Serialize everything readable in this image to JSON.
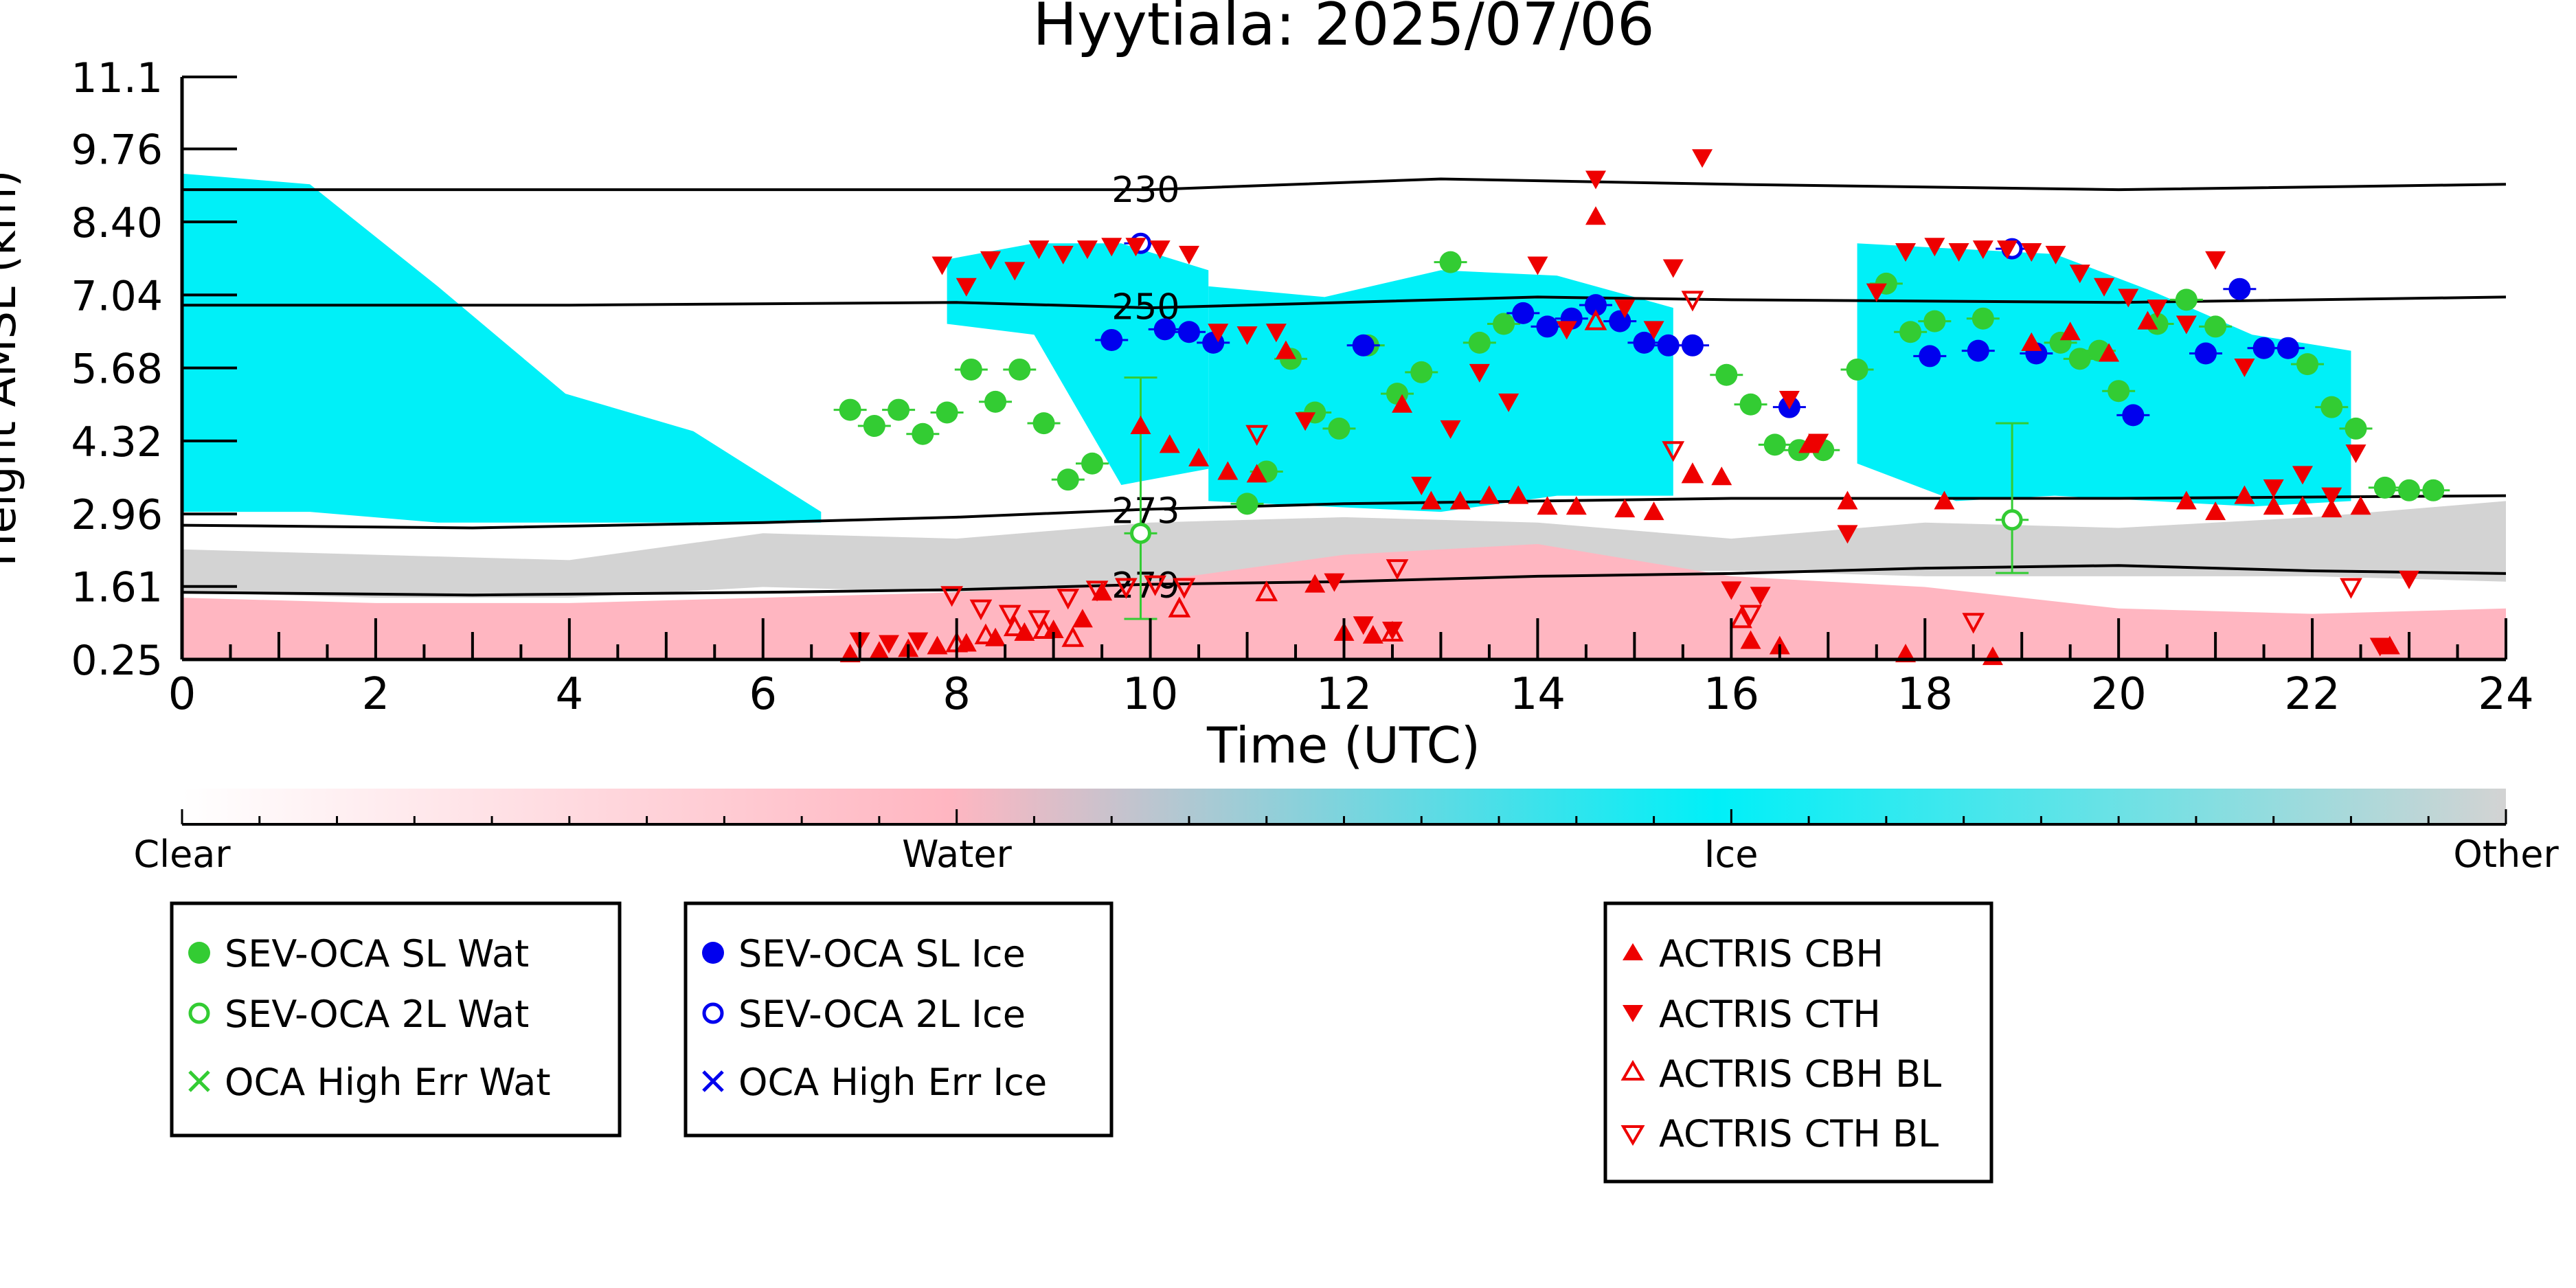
{
  "chart_data": {
    "type": "scatter",
    "title": "Hyytiala: 2025/07/06",
    "xlabel": "Time (UTC)",
    "ylabel": "Height AMSL (km)",
    "xlim": [
      0,
      24
    ],
    "ylim": [
      0.25,
      11.1
    ],
    "xticks": [
      "0",
      "2",
      "4",
      "6",
      "8",
      "10",
      "12",
      "14",
      "16",
      "18",
      "20",
      "22",
      "24"
    ],
    "yticks": [
      "0.25",
      "1.61",
      "2.96",
      "4.32",
      "5.68",
      "7.04",
      "8.40",
      "9.76",
      "11.1"
    ],
    "ytick_values": [
      0.25,
      1.61,
      2.96,
      4.32,
      5.68,
      7.04,
      8.4,
      9.76,
      11.1
    ],
    "colorbar": {
      "labels": [
        "Clear",
        "Water",
        "Ice",
        "Other"
      ],
      "colors": [
        "#ffffff",
        "#ffb6c1",
        "#00f0f8",
        "#d3d3d3"
      ]
    },
    "background_fields": [
      {
        "class": "Ice",
        "color": "#00f0f8",
        "regions": [
          {
            "x": [
              0,
              6.6
            ],
            "top": [
              9.3,
              9.1,
              7.2,
              5.2,
              4.5,
              3.0
            ],
            "bottom": [
              3.0,
              3.0,
              2.8,
              2.8,
              2.8,
              2.8
            ]
          },
          {
            "x": [
              7.9,
              10.6
            ],
            "top": [
              7.7,
              8.0,
              8.0,
              7.5
            ],
            "bottom": [
              6.5,
              6.3,
              3.5,
              3.8
            ]
          },
          {
            "x": [
              10.6,
              15.4
            ],
            "top": [
              7.2,
              7.0,
              7.5,
              7.4,
              6.8
            ],
            "bottom": [
              3.2,
              3.1,
              3.0,
              3.3,
              3.3
            ]
          },
          {
            "x": [
              17.3,
              22.4
            ],
            "top": [
              8.0,
              7.9,
              7.8,
              7.1,
              6.3,
              6.0
            ],
            "bottom": [
              3.9,
              3.2,
              3.3,
              3.2,
              3.1,
              3.2
            ]
          }
        ]
      },
      {
        "class": "Other",
        "color": "#d3d3d3",
        "regions": [
          {
            "x": [
              0,
              24
            ],
            "top": [
              2.3,
              2.2,
              2.1,
              2.6,
              2.5,
              2.8,
              2.9,
              2.8,
              2.5,
              2.8,
              2.7,
              2.9,
              3.2
            ],
            "bottom": [
              1.5,
              1.4,
              1.4,
              1.6,
              1.5,
              1.6,
              1.8,
              1.9,
              1.9,
              1.8,
              1.8,
              1.8,
              1.7
            ]
          }
        ]
      },
      {
        "class": "Water",
        "color": "#ffb6c1",
        "regions": [
          {
            "x": [
              0,
              24
            ],
            "top": [
              1.4,
              1.3,
              1.3,
              1.4,
              1.5,
              1.7,
              2.2,
              2.4,
              1.8,
              1.6,
              1.2,
              1.1,
              1.2
            ],
            "bottom": [
              0.25,
              0.25,
              0.25,
              0.25,
              0.25,
              0.25,
              0.25,
              0.25,
              0.25,
              0.25,
              0.25,
              0.25,
              0.25
            ]
          }
        ]
      }
    ],
    "isotherms": [
      {
        "label": "230",
        "label_x": 9.6,
        "x": [
          0,
          4,
          8,
          10,
          13,
          16,
          20,
          24
        ],
        "y": [
          9.0,
          9.0,
          9.0,
          9.0,
          9.2,
          9.1,
          9.0,
          9.1
        ]
      },
      {
        "label": "250",
        "label_x": 9.6,
        "x": [
          0,
          4,
          8,
          10,
          12,
          14,
          16,
          20,
          24
        ],
        "y": [
          6.85,
          6.85,
          6.9,
          6.8,
          6.9,
          7.0,
          6.95,
          6.9,
          7.0
        ]
      },
      {
        "label": "273",
        "label_x": 9.6,
        "x": [
          0,
          3,
          6,
          8,
          10,
          12,
          14,
          16,
          18,
          20,
          24
        ],
        "y": [
          2.75,
          2.7,
          2.8,
          2.9,
          3.05,
          3.15,
          3.2,
          3.25,
          3.25,
          3.25,
          3.3
        ]
      },
      {
        "label": "279",
        "label_x": 9.6,
        "x": [
          0,
          3,
          6,
          8,
          10,
          12,
          14,
          16,
          18,
          20,
          22,
          24
        ],
        "y": [
          1.5,
          1.45,
          1.5,
          1.55,
          1.65,
          1.7,
          1.8,
          1.85,
          1.95,
          2.0,
          1.9,
          1.85
        ]
      }
    ],
    "series": [
      {
        "name": "SEV-OCA SL Wat",
        "marker": "filled-circle",
        "color": "#33cc33",
        "x": [
          6.9,
          7.15,
          7.4,
          7.65,
          7.9,
          8.15,
          8.4,
          8.65,
          8.9,
          9.15,
          9.4,
          11.0,
          11.2,
          11.45,
          11.7,
          11.95,
          12.25,
          12.55,
          12.8,
          13.1,
          13.4,
          13.65,
          15.95,
          16.2,
          16.45,
          16.7,
          16.95,
          17.3,
          17.6,
          17.85,
          18.1,
          18.6,
          19.4,
          19.6,
          19.8,
          20.0,
          20.4,
          20.7,
          21.0,
          21.95,
          22.2,
          22.45,
          22.75,
          23.0,
          23.25
        ],
        "y": [
          4.9,
          4.6,
          4.9,
          4.45,
          4.85,
          5.65,
          5.05,
          5.65,
          4.65,
          3.6,
          3.9,
          3.15,
          3.75,
          5.85,
          4.85,
          4.55,
          6.1,
          5.2,
          5.6,
          7.65,
          6.15,
          6.5,
          5.55,
          5.0,
          4.25,
          4.15,
          4.15,
          5.65,
          7.25,
          6.35,
          6.55,
          6.6,
          6.15,
          5.85,
          6.0,
          5.25,
          6.5,
          6.95,
          6.45,
          5.75,
          4.95,
          4.55,
          3.45,
          3.4,
          3.4
        ]
      },
      {
        "name": "SEV-OCA 2L Wat",
        "marker": "open-circle",
        "color": "#33cc33",
        "x": [
          9.9,
          18.9
        ],
        "y": [
          2.6,
          2.85
        ],
        "err": [
          2.9,
          1.8
        ]
      },
      {
        "name": "OCA High Err Wat",
        "marker": "x",
        "color": "#33cc33",
        "x": [],
        "y": []
      },
      {
        "name": "SEV-OCA SL Ice",
        "marker": "filled-circle",
        "color": "#0000ee",
        "x": [
          9.6,
          10.15,
          10.4,
          10.65,
          12.2,
          13.85,
          14.1,
          14.35,
          14.6,
          14.85,
          15.1,
          15.35,
          15.6,
          16.6,
          18.05,
          18.55,
          19.15,
          20.15,
          21.25,
          21.5,
          21.75,
          20.9
        ],
        "y": [
          6.2,
          6.4,
          6.35,
          6.15,
          6.1,
          6.7,
          6.45,
          6.6,
          6.85,
          6.55,
          6.15,
          6.1,
          6.1,
          4.95,
          5.9,
          6.0,
          5.95,
          4.8,
          7.15,
          6.05,
          6.05,
          5.95
        ]
      },
      {
        "name": "SEV-OCA 2L Ice",
        "marker": "open-circle",
        "color": "#0000ee",
        "x": [
          9.9,
          18.9
        ],
        "y": [
          8.0,
          7.9
        ]
      },
      {
        "name": "OCA High Err Ice",
        "marker": "x",
        "color": "#0000ee",
        "x": [],
        "y": []
      },
      {
        "name": "ACTRIS CBH",
        "marker": "filled-triangle-up",
        "color": "#ee0000",
        "x": [
          6.9,
          7.2,
          7.5,
          7.8,
          8.1,
          8.4,
          8.7,
          9.0,
          9.3,
          9.5,
          9.9,
          10.2,
          10.5,
          10.8,
          11.1,
          11.4,
          11.7,
          12.0,
          12.3,
          12.6,
          12.9,
          13.2,
          13.5,
          13.8,
          14.1,
          14.4,
          14.6,
          14.9,
          15.2,
          15.6,
          15.9,
          16.2,
          16.5,
          16.8,
          17.2,
          17.8,
          18.2,
          18.7,
          19.1,
          19.5,
          19.9,
          20.3,
          20.7,
          21.0,
          21.3,
          21.6,
          21.9,
          22.2,
          22.5,
          22.8
        ],
        "y": [
          0.35,
          0.4,
          0.45,
          0.5,
          0.55,
          0.65,
          0.75,
          0.8,
          1.0,
          1.5,
          4.6,
          4.25,
          4.0,
          3.75,
          3.7,
          6.0,
          1.65,
          0.75,
          0.7,
          5.0,
          3.2,
          3.2,
          3.3,
          3.3,
          3.1,
          3.1,
          8.5,
          3.05,
          3.0,
          3.7,
          3.65,
          0.6,
          0.5,
          4.25,
          3.2,
          0.35,
          3.2,
          0.3,
          6.15,
          6.35,
          5.95,
          6.55,
          3.2,
          3.0,
          3.3,
          3.1,
          3.1,
          3.05,
          3.1,
          0.5
        ]
      },
      {
        "name": "ACTRIS CTH",
        "marker": "filled-triangle-down",
        "color": "#ee0000",
        "x": [
          7.0,
          7.3,
          7.6,
          7.85,
          8.1,
          8.35,
          8.6,
          8.85,
          9.1,
          9.35,
          9.6,
          9.85,
          10.1,
          10.4,
          10.7,
          11.0,
          11.3,
          11.6,
          11.9,
          12.2,
          12.5,
          12.8,
          13.1,
          13.4,
          13.7,
          14.0,
          14.3,
          14.6,
          14.9,
          15.2,
          15.4,
          15.7,
          16.0,
          16.3,
          16.6,
          16.9,
          17.2,
          17.5,
          17.8,
          18.1,
          18.35,
          18.6,
          18.85,
          19.1,
          19.35,
          19.6,
          19.85,
          20.1,
          20.4,
          20.7,
          21.0,
          21.3,
          21.6,
          21.9,
          22.2,
          22.45,
          22.7,
          23.0
        ],
        "y": [
          0.6,
          0.55,
          0.6,
          7.6,
          7.2,
          7.7,
          7.5,
          7.9,
          7.8,
          7.9,
          7.95,
          7.95,
          7.9,
          7.8,
          6.35,
          6.3,
          6.35,
          4.7,
          1.7,
          0.9,
          0.8,
          3.5,
          4.55,
          5.6,
          5.05,
          7.6,
          6.4,
          9.2,
          6.8,
          6.4,
          7.55,
          9.6,
          1.55,
          1.45,
          5.1,
          4.3,
          2.6,
          7.1,
          7.85,
          7.95,
          7.85,
          7.9,
          7.9,
          7.85,
          7.8,
          7.45,
          7.2,
          7.0,
          6.8,
          6.5,
          7.7,
          5.7,
          3.45,
          3.7,
          3.3,
          4.1,
          0.5,
          1.75
        ]
      },
      {
        "name": "ACTRIS CBH BL",
        "marker": "open-triangle-up",
        "color": "#ee0000",
        "x": [
          8.0,
          8.3,
          8.6,
          8.9,
          9.2,
          10.3,
          11.2,
          12.5,
          14.6,
          15.6,
          16.1
        ],
        "y": [
          0.55,
          0.7,
          0.85,
          0.8,
          0.65,
          1.2,
          1.5,
          0.75,
          6.55,
          3.7,
          1.0
        ]
      },
      {
        "name": "ACTRIS CTH BL",
        "marker": "open-triangle-down",
        "color": "#ee0000",
        "x": [
          7.95,
          8.25,
          8.55,
          8.85,
          9.15,
          9.45,
          9.75,
          10.05,
          10.35,
          11.1,
          12.55,
          15.4,
          15.6,
          16.2,
          18.5,
          22.4
        ],
        "y": [
          1.45,
          1.2,
          1.1,
          1.0,
          1.4,
          1.55,
          1.6,
          1.65,
          1.6,
          4.45,
          1.95,
          4.15,
          6.95,
          1.1,
          0.95,
          1.6
        ]
      }
    ]
  }
}
